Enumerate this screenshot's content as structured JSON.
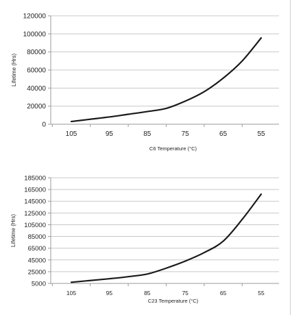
{
  "colors": {
    "line": "#1a1a1a",
    "grid": "#c8c8c8",
    "axis": "#9a9a9a",
    "text": "#222222"
  },
  "chart_data": [
    {
      "type": "line",
      "xlabel": "C6 Temperature (°C)",
      "ylabel": "Lifetime (Hrs)",
      "categories": [
        "105",
        "95",
        "85",
        "75",
        "65",
        "55"
      ],
      "ylim": [
        0,
        120000
      ],
      "yticks": [
        0,
        20000,
        40000,
        60000,
        80000,
        100000,
        120000
      ],
      "grid": true,
      "legend": "none",
      "series": [
        {
          "x": [
            105,
            100,
            95,
            90,
            85,
            80,
            75,
            70,
            65,
            60,
            55
          ],
          "values": [
            3000,
            5500,
            8000,
            11000,
            14000,
            17500,
            25500,
            36000,
            51000,
            70000,
            95500
          ]
        }
      ]
    },
    {
      "type": "line",
      "xlabel": "C23 Temperature (°C)",
      "ylabel": "Lifetime (Hrs)",
      "categories": [
        "105",
        "95",
        "85",
        "75",
        "65",
        "55"
      ],
      "ylim": [
        5000,
        185000
      ],
      "yticks": [
        5000,
        25000,
        45000,
        65000,
        85000,
        105000,
        125000,
        145000,
        165000,
        185000
      ],
      "grid": true,
      "legend": "none",
      "series": [
        {
          "x": [
            105,
            100,
            95,
            90,
            85,
            80,
            75,
            70,
            65,
            60,
            55
          ],
          "values": [
            7000,
            10000,
            13000,
            16500,
            21000,
            31000,
            43000,
            57500,
            77000,
            114000,
            157000
          ]
        }
      ]
    }
  ]
}
